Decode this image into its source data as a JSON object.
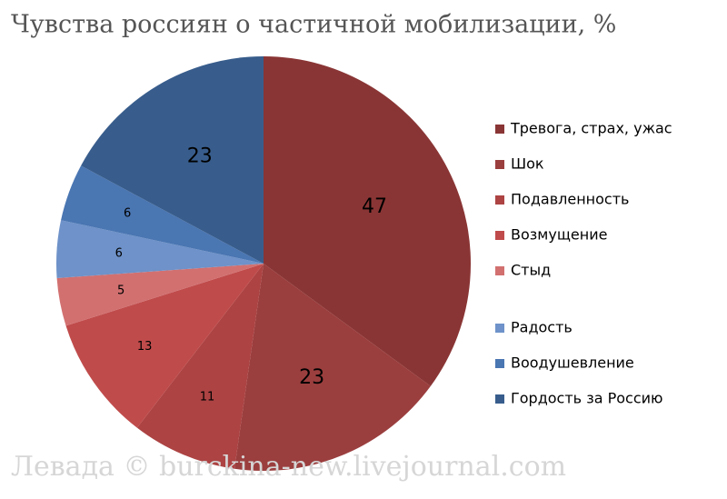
{
  "chart_data": {
    "type": "pie",
    "title": "Чувства россиян о частичной мобилизации, %",
    "watermark": "Левада © burckina-new.livejournal.com",
    "categories": [
      "Тревога, страх, ужас",
      "Шок",
      "Подавленность",
      "Возмущение",
      "Стыд",
      "Радость",
      "Воодушевление",
      "Гордость за Россию"
    ],
    "values": [
      47,
      23,
      11,
      13,
      5,
      6,
      6,
      23
    ],
    "colors": [
      "#8a3535",
      "#9b3e3e",
      "#ad4343",
      "#c04b4b",
      "#d27070",
      "#6e92c9",
      "#4a76b2",
      "#385d8c"
    ],
    "legend": "right"
  }
}
